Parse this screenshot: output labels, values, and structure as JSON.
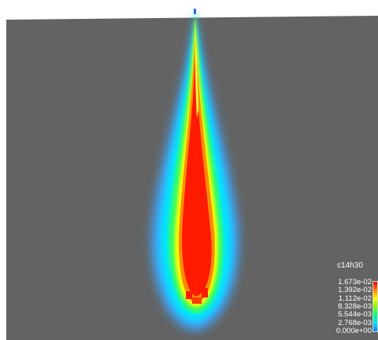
{
  "visualization": {
    "field_name": "c14h30",
    "background_color": "#636363",
    "colormap": [
      "#0080ff",
      "#00e0ff",
      "#00ff80",
      "#80ff00",
      "#ffff00",
      "#ff8000",
      "#ff0000"
    ],
    "legend": {
      "title": "c14h30",
      "ticks": [
        "1.673e-02",
        "1.392e-02",
        "1.112e-02",
        "8.328e-03",
        "5.544e-03",
        "2.768e-03",
        "0.000e+00"
      ],
      "min": 0.0,
      "max": 0.01673
    }
  }
}
